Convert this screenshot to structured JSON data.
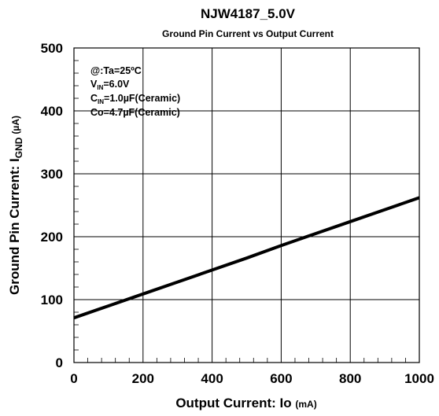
{
  "chart_data": {
    "type": "line",
    "title": "NJW4187_5.0V",
    "subtitle": "Ground Pin Current vs Output Current",
    "xlabel": {
      "main": "Output Current: Io",
      "unit": "(mA)"
    },
    "ylabel": {
      "main": "Ground Pin Current: I",
      "sub": "GND",
      "unit": "(µA)"
    },
    "xlim": [
      0,
      1000
    ],
    "ylim": [
      0,
      500
    ],
    "xticks": [
      "0",
      "200",
      "400",
      "600",
      "800",
      "1000"
    ],
    "yticks": [
      "0",
      "100",
      "200",
      "300",
      "400",
      "500"
    ],
    "grid": true,
    "annotations": [
      {
        "text": "@:Ta=25ºC"
      },
      {
        "text": "V",
        "sub": "IN",
        "rest": "=6.0V"
      },
      {
        "text": "C",
        "sub": "IN",
        "rest": "=1.0µF(Ceramic)"
      },
      {
        "text": "Co=4.7µF(Ceramic)"
      }
    ],
    "series": [
      {
        "x": [
          0,
          100,
          200,
          300,
          400,
          500,
          600,
          700,
          800,
          900,
          1000
        ],
        "y": [
          71,
          90,
          109,
          128,
          147,
          166,
          186,
          205,
          224,
          243,
          262
        ],
        "color": "#000000"
      }
    ]
  }
}
